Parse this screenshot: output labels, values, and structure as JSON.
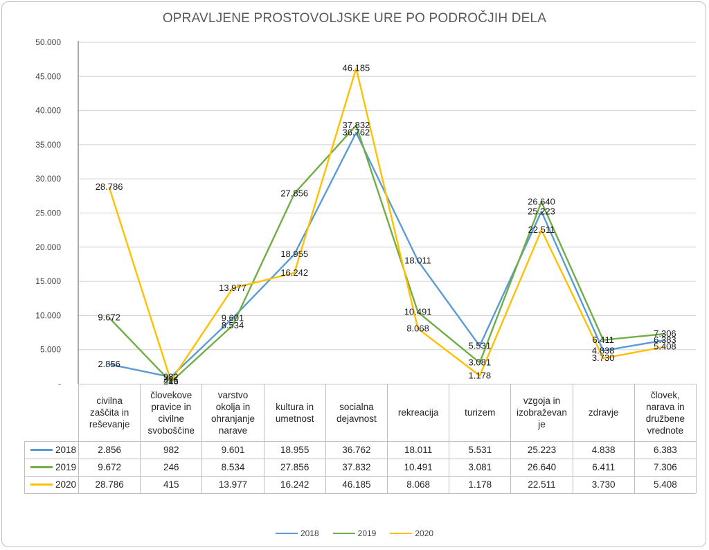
{
  "chart_data": {
    "type": "line",
    "title": "OPRAVLJENE PROSTOVOLJSKE URE PO PODROČJIH DELA",
    "xlabel": "",
    "ylabel": "",
    "ylim": [
      0,
      50000
    ],
    "yticks": [
      0,
      5000,
      10000,
      15000,
      20000,
      25000,
      30000,
      35000,
      40000,
      45000,
      50000
    ],
    "ytick_labels": [
      "-",
      "5.000",
      "10.000",
      "15.000",
      "20.000",
      "25.000",
      "30.000",
      "35.000",
      "40.000",
      "45.000",
      "50.000"
    ],
    "grid": true,
    "legend_position": "bottom",
    "categories": [
      "civilna zaščita in reševanje",
      "človekove pravice in civilne svoboščine",
      "varstvo okolja in ohranjanje narave",
      "kultura in umetnost",
      "socialna dejavnost",
      "rekreacija",
      "turizem",
      "vzgoja in izobraževan je",
      "zdravje",
      "človek, narava in družbene vrednote"
    ],
    "series": [
      {
        "name": "2018",
        "color": "#5b9bd5",
        "values": [
          2856,
          982,
          9601,
          18955,
          36762,
          18011,
          5531,
          25223,
          4838,
          6383
        ],
        "labels": [
          "2.856",
          "982",
          "9.601",
          "18.955",
          "36.762",
          "18.011",
          "5.531",
          "25.223",
          "4.838",
          "6.383"
        ]
      },
      {
        "name": "2019",
        "color": "#70ad47",
        "values": [
          9672,
          246,
          8534,
          27856,
          37832,
          10491,
          3081,
          26640,
          6411,
          7306
        ],
        "labels": [
          "9.672",
          "246",
          "8.534",
          "27.856",
          "37.832",
          "10.491",
          "3.081",
          "26.640",
          "6.411",
          "7.306"
        ]
      },
      {
        "name": "2020",
        "color": "#ffc000",
        "values": [
          28786,
          415,
          13977,
          16242,
          46185,
          8068,
          1178,
          22511,
          3730,
          5408
        ],
        "labels": [
          "28.786",
          "415",
          "13.977",
          "16.242",
          "46.185",
          "8.068",
          "1.178",
          "22.511",
          "3.730",
          "5.408"
        ]
      }
    ],
    "data_table": true
  },
  "table": {
    "headers": [
      [
        "civilna",
        "zaščita in",
        "reševanje"
      ],
      [
        "človekove",
        "pravice in",
        "civilne",
        "svoboščine"
      ],
      [
        "varstvo",
        "okolja in",
        "ohranjanje",
        "narave"
      ],
      [
        "kultura in",
        "umetnost"
      ],
      [
        "socialna",
        "dejavnost"
      ],
      [
        "rekreacija"
      ],
      [
        "turizem"
      ],
      [
        "vzgoja in",
        "izobraževan",
        "je"
      ],
      [
        "zdravje"
      ],
      [
        "človek,",
        "narava in",
        "družbene",
        "vrednote"
      ]
    ]
  },
  "legend": [
    "2018",
    "2019",
    "2020"
  ]
}
